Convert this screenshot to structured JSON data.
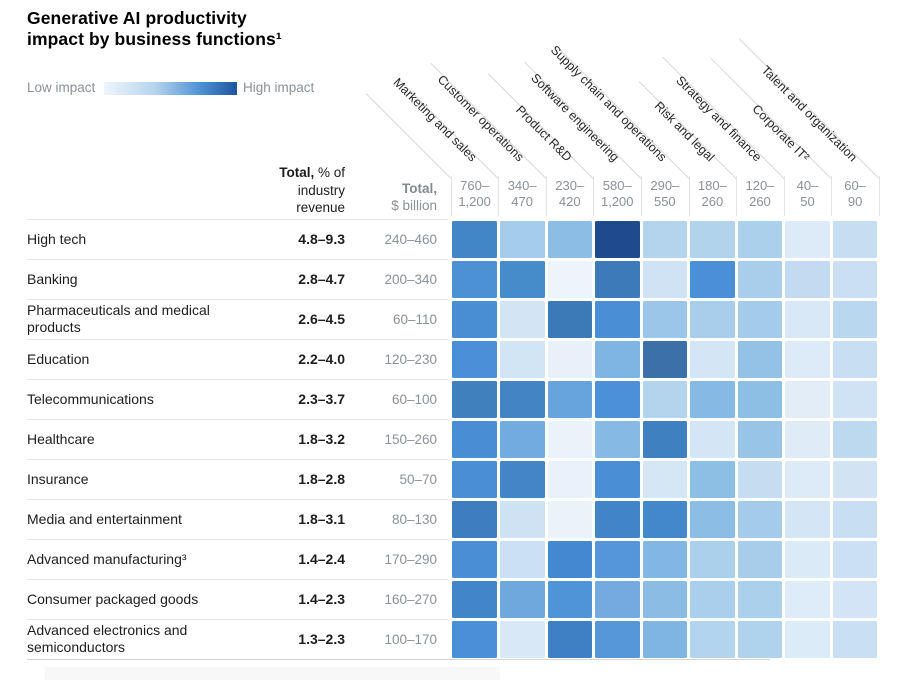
{
  "title": {
    "line1": "Generative AI productivity",
    "line2": "impact by business functions¹"
  },
  "legend": {
    "low_label": "Low impact",
    "high_label": "High impact",
    "gradient_stops": [
      "#eef5fc",
      "#b7d4ee",
      "#4f92d4",
      "#1e549e"
    ]
  },
  "row_header": {
    "bold": "Total,",
    "rest": " % of",
    "line2": "industry",
    "line3": "revenue"
  },
  "col_total_header": {
    "bold": "Total,",
    "rest": "$ billion"
  },
  "chart_data": {
    "type": "heatmap",
    "title": "Generative AI productivity impact by business functions¹",
    "legend": "Low impact → High impact (color intensity)",
    "columns": [
      "Marketing and sales",
      "Customer operations",
      "Product R&D",
      "Software engineering",
      "Supply chain and operations",
      "Risk and legal",
      "Strategy and finance",
      "Corporate IT²",
      "Talent and organization"
    ],
    "column_totals_billion": [
      "760–1,200",
      "340–470",
      "230–420",
      "580–1,200",
      "290–550",
      "180–260",
      "120–260",
      "40–50",
      "60–90"
    ],
    "rows": [
      {
        "label": "High tech",
        "pct_of_industry_revenue": "4.8–9.3",
        "total_billion": "240–460",
        "impact_levels": [
          74,
          38,
          48,
          100,
          32,
          33,
          36,
          10,
          24
        ],
        "cells": [
          "#4286c8",
          "#a5ccea",
          "#8cbee5",
          "#1f4b8e",
          "#b4d4ed",
          "#b1d3ec",
          "#aad0eb",
          "#dcebf7",
          "#c6def1"
        ]
      },
      {
        "label": "Banking",
        "pct_of_industry_revenue": "2.8–4.7",
        "total_billion": "200–340",
        "impact_levels": [
          70,
          72,
          2,
          79,
          16,
          70,
          37,
          26,
          21
        ],
        "cells": [
          "#4d91d5",
          "#468bca",
          "#edf4fb",
          "#3d7ab9",
          "#d0e3f5",
          "#4a90d9",
          "#a9ceeb",
          "#c2dbf0",
          "#cbdff2"
        ]
      },
      {
        "label": "Pharmaceuticals and medical products",
        "pct_of_industry_revenue": "2.6–4.5",
        "total_billion": "60–110",
        "impact_levels": [
          71,
          16,
          80,
          70,
          42,
          37,
          39,
          13,
          30
        ],
        "cells": [
          "#498ed2",
          "#d3e5f5",
          "#3c79b7",
          "#4a8fd5",
          "#9cc6e9",
          "#a8ceeb",
          "#a4cbea",
          "#d8e8f6",
          "#b9d7ee"
        ]
      },
      {
        "label": "Education",
        "pct_of_industry_revenue": "2.2–4.0",
        "total_billion": "120–230",
        "impact_levels": [
          70,
          16,
          5,
          52,
          83,
          15,
          45,
          10,
          25
        ],
        "cells": [
          "#4a90d9",
          "#d2e5f5",
          "#e8f1fa",
          "#7fb5e3",
          "#3b70a9",
          "#d4e6f5",
          "#94c2e7",
          "#dcebf7",
          "#c8def2"
        ]
      },
      {
        "label": "Telecommunications",
        "pct_of_industry_revenue": "2.3–3.7",
        "total_billion": "60–100",
        "impact_levels": [
          76,
          74,
          60,
          70,
          32,
          50,
          48,
          7,
          18
        ],
        "cells": [
          "#3f80bd",
          "#4384c4",
          "#67a3dc",
          "#4b90d9",
          "#b4d4ed",
          "#86b9e3",
          "#8dbfe5",
          "#e2edf8",
          "#d0e3f4"
        ]
      },
      {
        "label": "Healthcare",
        "pct_of_industry_revenue": "1.8–3.2",
        "total_billion": "150–260",
        "impact_levels": [
          71,
          57,
          4,
          50,
          76,
          15,
          44,
          9,
          28
        ],
        "cells": [
          "#488ed5",
          "#72abdf",
          "#eaf2fa",
          "#86b9e3",
          "#3f80c0",
          "#d4e6f5",
          "#98c4e8",
          "#dfecf8",
          "#bdd9ef"
        ]
      },
      {
        "label": "Insurance",
        "pct_of_industry_revenue": "1.8–2.8",
        "total_billion": "50–70",
        "impact_levels": [
          70,
          73,
          4,
          70,
          15,
          48,
          24,
          10,
          16
        ],
        "cells": [
          "#4a8fd6",
          "#4385c7",
          "#e9f2fa",
          "#4a8fd6",
          "#d5e6f5",
          "#8dbfe5",
          "#c6ddf1",
          "#dcebf7",
          "#d2e4f4"
        ]
      },
      {
        "label": "Media and entertainment",
        "pct_of_industry_revenue": "1.8–3.1",
        "total_billion": "80–130",
        "impact_levels": [
          77,
          19,
          4,
          74,
          72,
          49,
          39,
          15,
          25
        ],
        "cells": [
          "#3e7ec0",
          "#cfe2f4",
          "#eaf2fa",
          "#4184c8",
          "#4488cc",
          "#8bbde5",
          "#a4cbea",
          "#d4e5f6",
          "#c8def2"
        ]
      },
      {
        "label": "Advanced manufacturing³",
        "pct_of_industry_revenue": "1.4–2.4",
        "total_billion": "170–290",
        "impact_levels": [
          70,
          20,
          72,
          65,
          52,
          35,
          38,
          12,
          20
        ],
        "cells": [
          "#4a8fd6",
          "#cbe0f3",
          "#4389d1",
          "#5496d9",
          "#81b7e2",
          "#abd0ec",
          "#a7cdeb",
          "#daeaf7",
          "#cce0f3"
        ]
      },
      {
        "label": "Consumer packaged goods",
        "pct_of_industry_revenue": "1.4–2.3",
        "total_billion": "160–270",
        "impact_levels": [
          74,
          58,
          68,
          57,
          48,
          36,
          35,
          8,
          16
        ],
        "cells": [
          "#4285c9",
          "#6ea8dd",
          "#5094d8",
          "#73aadf",
          "#8bbde4",
          "#aacfec",
          "#abd0ec",
          "#ddecf8",
          "#d2e4f5"
        ]
      },
      {
        "label": "Advanced electronics and semiconductors",
        "pct_of_industry_revenue": "1.3–2.3",
        "total_billion": "100–170",
        "impact_levels": [
          70,
          13,
          76,
          64,
          53,
          32,
          34,
          8,
          22
        ],
        "cells": [
          "#4a90d9",
          "#d8e8f6",
          "#3f80c4",
          "#5697da",
          "#7eb5e2",
          "#b3d4ee",
          "#afd2ed",
          "#dcebf8",
          "#c9dff3"
        ]
      }
    ]
  }
}
